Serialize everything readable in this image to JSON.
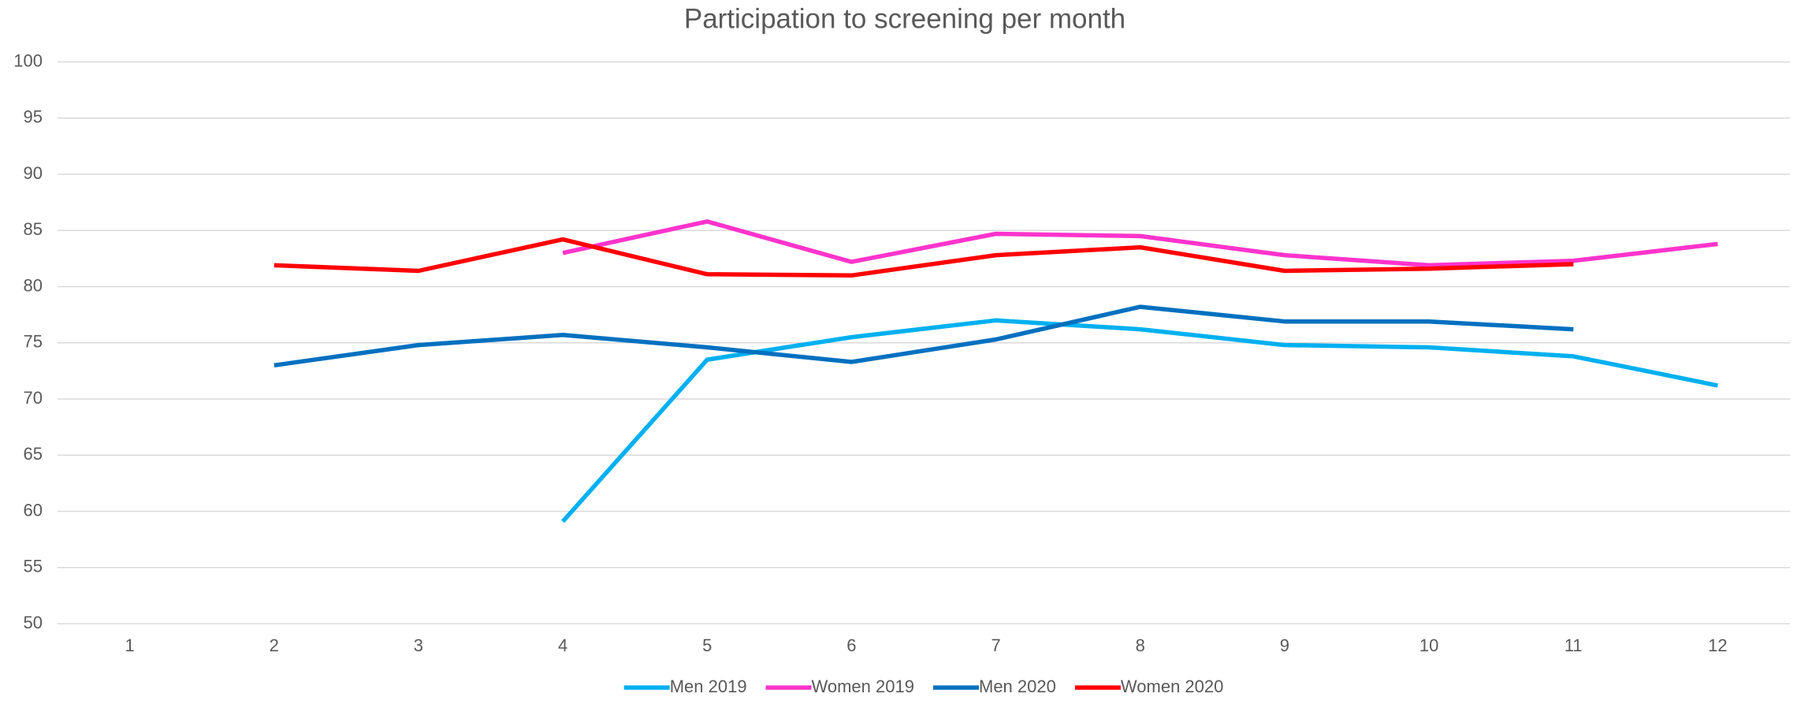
{
  "chart_data": {
    "type": "line",
    "title": "Participation to screening per month",
    "categories": [
      1,
      2,
      3,
      4,
      5,
      6,
      7,
      8,
      9,
      10,
      11,
      12
    ],
    "series": [
      {
        "name": "Men 2019",
        "color": "#00b0f0",
        "values": [
          null,
          null,
          null,
          59.1,
          73.5,
          75.5,
          77.0,
          76.2,
          74.8,
          74.6,
          73.8,
          71.2
        ]
      },
      {
        "name": "Women 2019",
        "color": "#ff33cc",
        "values": [
          null,
          null,
          null,
          83.0,
          85.8,
          82.2,
          84.7,
          84.5,
          82.8,
          81.9,
          82.3,
          83.8
        ]
      },
      {
        "name": "Men 2020",
        "color": "#0070c0",
        "values": [
          null,
          73.0,
          74.8,
          75.7,
          74.6,
          73.3,
          75.3,
          78.2,
          76.9,
          76.9,
          76.2,
          null
        ]
      },
      {
        "name": "Women 2020",
        "color": "#ff0000",
        "values": [
          null,
          81.9,
          81.4,
          84.2,
          81.1,
          81.0,
          82.8,
          83.5,
          81.4,
          81.6,
          82.0,
          null
        ]
      }
    ],
    "ylim": [
      50,
      100
    ],
    "yticks": [
      50,
      55,
      60,
      65,
      70,
      75,
      80,
      85,
      90,
      95,
      100
    ],
    "grid": true,
    "legend": "bottom"
  }
}
